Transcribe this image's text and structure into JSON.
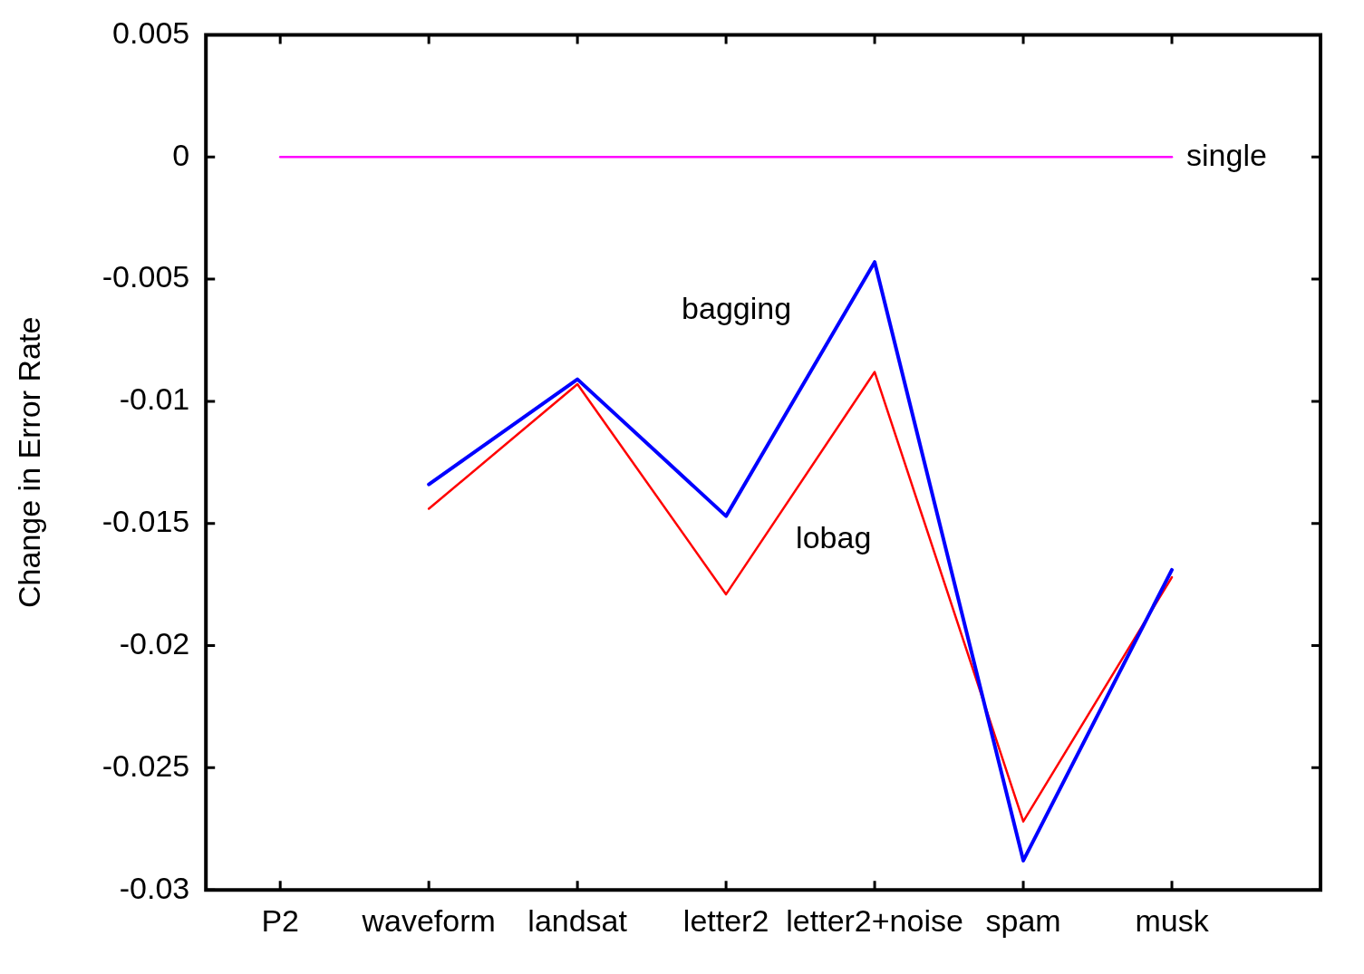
{
  "chart_data": {
    "type": "line",
    "ylabel": "Change in Error Rate",
    "categories": [
      "P2",
      "waveform",
      "landsat",
      "letter2",
      "letter2+noise",
      "spam",
      "musk"
    ],
    "series": [
      {
        "name": "single",
        "color": "#ff00ff",
        "values": [
          0,
          0,
          0,
          0,
          0,
          0,
          0
        ]
      },
      {
        "name": "bagging",
        "color": "#0000ff",
        "values": [
          null,
          -0.0134,
          -0.0091,
          -0.0147,
          -0.0043,
          -0.0288,
          -0.0169
        ]
      },
      {
        "name": "lobag",
        "color": "#ff0000",
        "values": [
          null,
          -0.0144,
          -0.0093,
          -0.0179,
          -0.0088,
          -0.0272,
          -0.0172
        ]
      }
    ],
    "ylim": [
      -0.03,
      0.005
    ],
    "yticks": [
      -0.03,
      -0.025,
      -0.02,
      -0.015,
      -0.01,
      -0.005,
      0,
      0.005
    ],
    "grid": false,
    "legend": false,
    "marker": "none",
    "line_style": "solid"
  }
}
